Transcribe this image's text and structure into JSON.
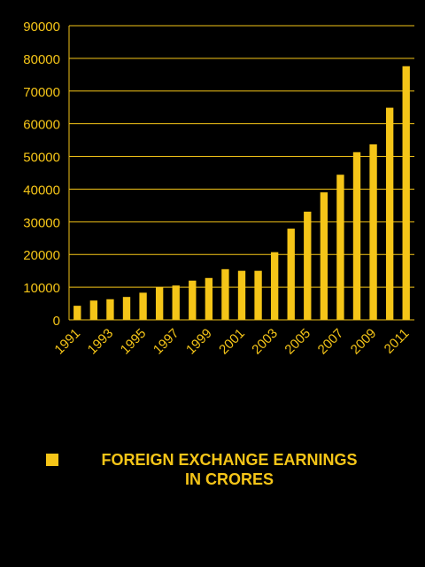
{
  "colors": {
    "bar": "#F5C518",
    "background": "#000000",
    "text": "#F5C518",
    "grid": "#F5C518"
  },
  "chart_data": {
    "type": "bar",
    "categories": [
      "1991",
      "1992",
      "1993",
      "1994",
      "1995",
      "1996",
      "1997",
      "1998",
      "1999",
      "2000",
      "2001",
      "2002",
      "2003",
      "2004",
      "2005",
      "2006",
      "2007",
      "2008",
      "2009",
      "2010",
      "2011"
    ],
    "x_tick_labels": [
      "1991",
      "1993",
      "1995",
      "1997",
      "1999",
      "2001",
      "2003",
      "2005",
      "2007",
      "2009",
      "2011"
    ],
    "series": [
      {
        "name": "FOREIGN EXCHANGE EARNINGS IN CRORES",
        "values": [
          4300,
          5900,
          6300,
          7000,
          8300,
          10000,
          10500,
          12000,
          12800,
          15500,
          15000,
          15000,
          20700,
          27900,
          33100,
          39000,
          44400,
          51300,
          53700,
          64900,
          77600
        ]
      }
    ],
    "y_ticks": [
      0,
      10000,
      20000,
      30000,
      40000,
      50000,
      60000,
      70000,
      80000,
      90000
    ],
    "ylim": [
      0,
      90000
    ],
    "grid": true,
    "legend_position": "bottom"
  },
  "legend": {
    "line1": "FOREIGN EXCHANGE EARNINGS",
    "line2": "IN CRORES"
  }
}
